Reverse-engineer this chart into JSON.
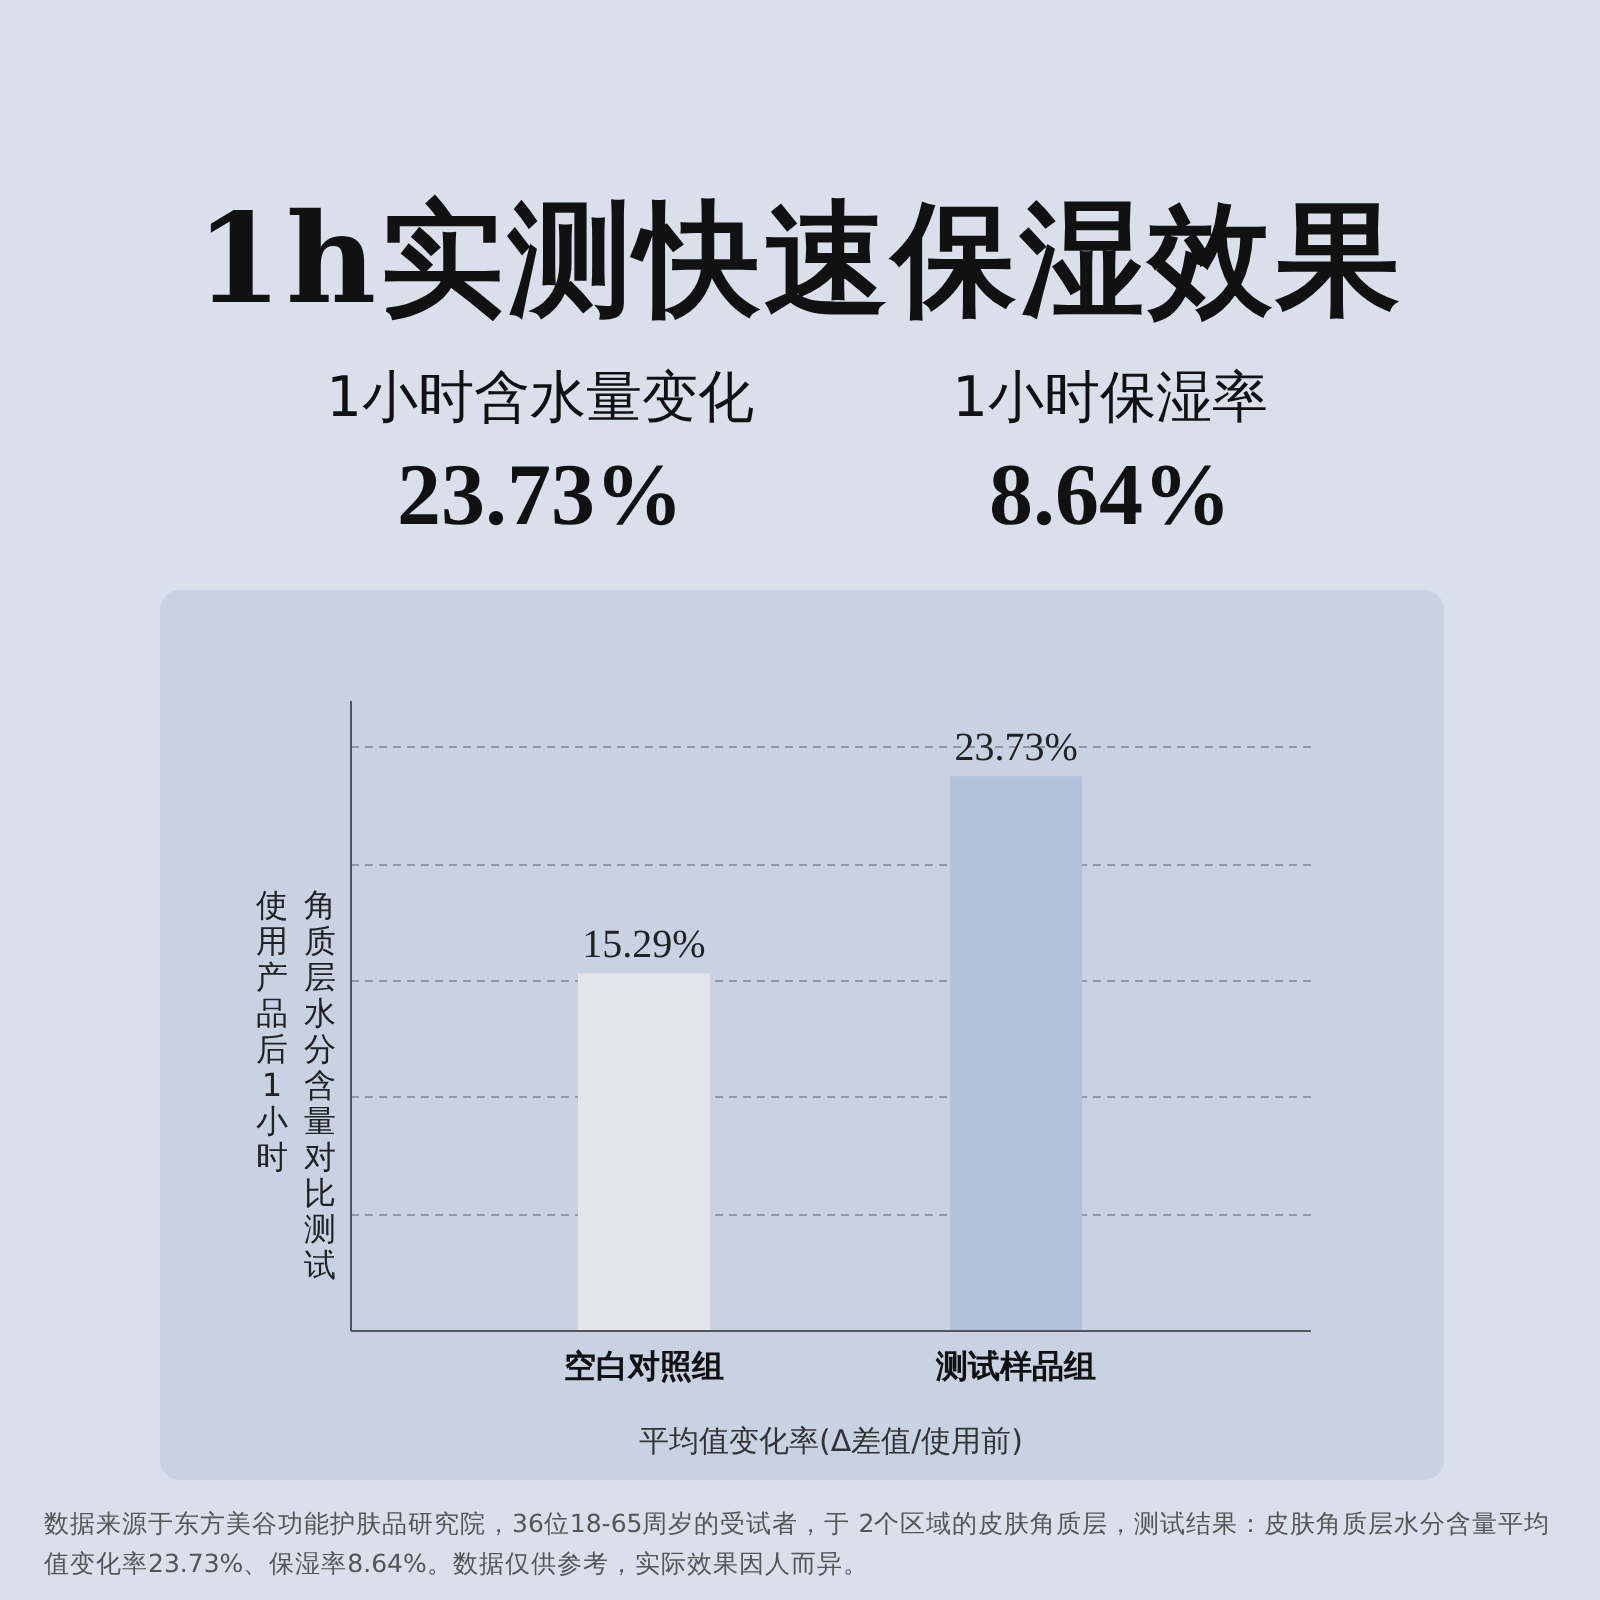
{
  "chart_data": {
    "type": "bar",
    "title": "1h实测快速保湿效果",
    "annotations": [
      "1小时含水量变化",
      "23.73%",
      "1小时保湿率",
      "8.64%",
      "数据来源于东方美谷功能护肤品研究院，36位18-65周岁的受试者，于 2个区域的皮肤角质层，测试结果：皮肤角质层水分含量平均值变化率23.73%、保湿率8.64%。数据仅供参考，实际效果因人而异。"
    ],
    "categories": [
      "空白对照组",
      "测试样品组"
    ],
    "values": [
      15.29,
      23.73
    ],
    "value_labels": [
      "15.29%",
      "23.73%"
    ],
    "colors": [
      "#e4e5e8",
      "#b3c1de"
    ],
    "xlabel": "平均值变化率(Δ差值/使用前)",
    "ylabel": "角质层水分含量对比测试使用产品后1小时",
    "ylim": [
      0,
      27
    ],
    "yticks": [
      {
        "value": 5,
        "label": null
      },
      {
        "value": 10,
        "label": null
      },
      {
        "value": 15,
        "label": null
      },
      {
        "value": 20,
        "label": null
      },
      {
        "value": 25,
        "label": null
      }
    ],
    "grid": "y",
    "tick_labels": "x"
  }
}
